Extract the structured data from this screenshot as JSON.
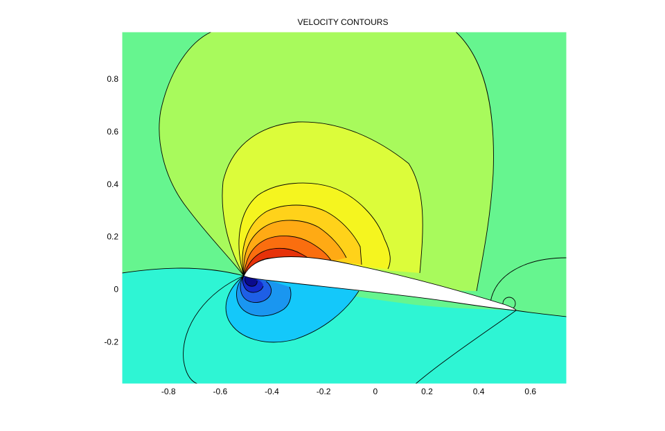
{
  "chart_data": {
    "type": "contour",
    "title": "VELOCITY CONTOURS",
    "xlabel": "",
    "ylabel": "",
    "xlim": [
      -0.98,
      0.74
    ],
    "ylim": [
      -0.36,
      0.98
    ],
    "x_ticks": [
      -0.8,
      -0.6,
      -0.4,
      -0.2,
      0,
      0.2,
      0.4,
      0.6
    ],
    "y_ticks": [
      -0.2,
      0,
      0.2,
      0.4,
      0.6,
      0.8
    ],
    "x_tick_labels": [
      "-0.8",
      "-0.6",
      "-0.4",
      "-0.2",
      "0",
      "0.2",
      "0.4",
      "0.6"
    ],
    "y_tick_labels": [
      "-0.2",
      "0",
      "0.2",
      "0.4",
      "0.6",
      "0.8"
    ],
    "grid": false,
    "colormap": "jet",
    "colors": {
      "freestream": "#66f58f",
      "lower_field": "#2ef5d4",
      "upper_level_1": "#a8fa5c",
      "upper_level_2": "#dcfc3a",
      "upper_level_3": "#f5f51f",
      "upper_level_4": "#ffd21a",
      "upper_level_5": "#ffaa14",
      "upper_level_6": "#fa6e0f",
      "upper_level_7": "#e6320a",
      "upper_level_8": "#c80000",
      "lower_level_1": "#14c8fa",
      "lower_level_2": "#1a96f0",
      "lower_level_3": "#1e5fe6",
      "lower_level_4": "#1428c8",
      "lower_level_5": "#0a0a8c",
      "airfoil": "#ffffff"
    },
    "airfoil": {
      "leading_edge": [
        -0.49,
        0.05
      ],
      "trailing_edge": [
        0.48,
        -0.07
      ]
    }
  }
}
